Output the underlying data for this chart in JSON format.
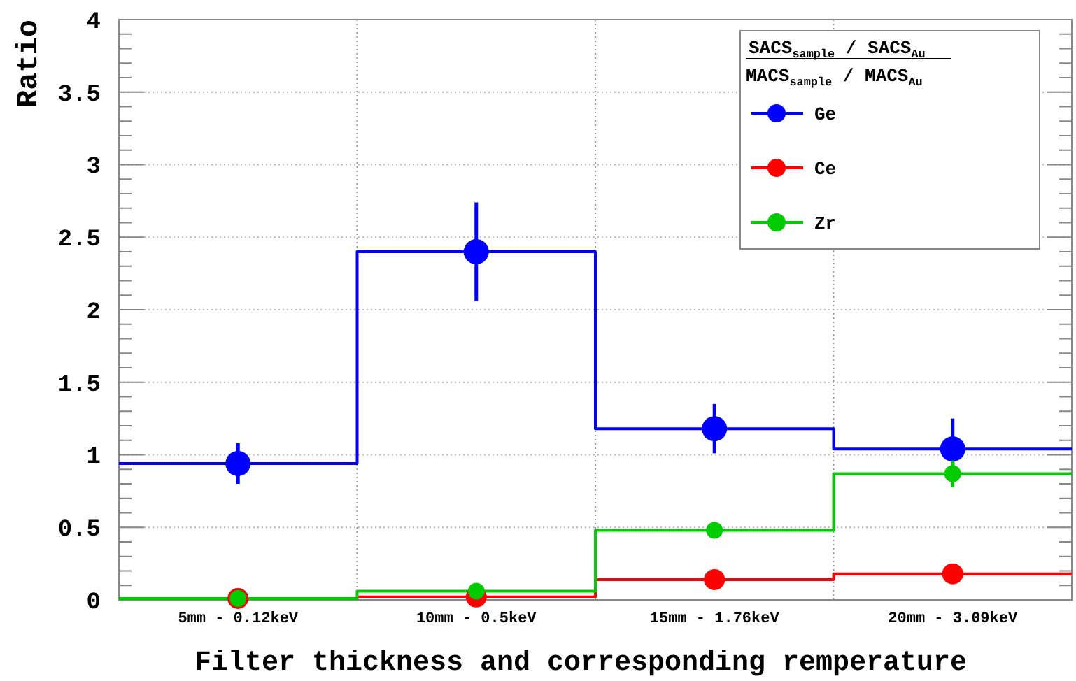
{
  "chart_data": {
    "type": "step",
    "xlabel": "Filter thickness and corresponding remperature",
    "ylabel": "Ratio",
    "legend_title": "SACS$_{sample}$ / SACS$_{Au}$\nMACS$_{sample}$ / MACS$_{Au}$",
    "categories": [
      "5mm - 0.12keV",
      "10mm - 0.5keV",
      "15mm - 1.76keV",
      "20mm - 3.09keV"
    ],
    "series": [
      {
        "name": "Ge",
        "color": "#0000ff",
        "values": [
          0.94,
          2.4,
          1.18,
          1.04
        ],
        "errors": [
          0.14,
          0.34,
          0.17,
          0.21
        ]
      },
      {
        "name": "Ce",
        "color": "#ff0000",
        "values": [
          0.01,
          0.02,
          0.14,
          0.18
        ],
        "errors": [
          null,
          null,
          null,
          null
        ]
      },
      {
        "name": "Zr",
        "color": "#00cc00",
        "values": [
          0.01,
          0.06,
          0.48,
          0.87
        ],
        "errors": [
          null,
          null,
          null,
          0.09
        ]
      }
    ],
    "ylim": [
      0,
      4
    ],
    "yticks": [
      0,
      {
        "value": 0.1,
        "label": null
      },
      {
        "value": 0.2,
        "label": null
      },
      {
        "value": 0.3,
        "label": null
      },
      {
        "value": 0.4,
        "label": null
      },
      0.5,
      {
        "value": 0.6,
        "label": null
      },
      {
        "value": 0.7,
        "label": null
      },
      {
        "value": 0.8,
        "label": null
      },
      {
        "value": 0.9,
        "label": null
      },
      1,
      {
        "value": 1.1,
        "label": null
      },
      {
        "value": 1.2,
        "label": null
      },
      {
        "value": 1.3,
        "label": null
      },
      {
        "value": 1.4,
        "label": null
      },
      1.5,
      {
        "value": 1.6,
        "label": null
      },
      {
        "value": 1.7,
        "label": null
      },
      {
        "value": 1.8,
        "label": null
      },
      {
        "value": 1.9,
        "label": null
      },
      2,
      {
        "value": 2.1,
        "label": null
      },
      {
        "value": 2.2,
        "label": null
      },
      {
        "value": 2.3,
        "label": null
      },
      {
        "value": 2.4,
        "label": null
      },
      2.5,
      {
        "value": 2.6,
        "label": null
      },
      {
        "value": 2.7,
        "label": null
      },
      {
        "value": 2.8,
        "label": null
      },
      {
        "value": 2.9,
        "label": null
      },
      3,
      {
        "value": 3.1,
        "label": null
      },
      {
        "value": 3.2,
        "label": null
      },
      {
        "value": 3.3,
        "label": null
      },
      {
        "value": 3.4,
        "label": null
      },
      3.5,
      {
        "value": 3.6,
        "label": null
      },
      {
        "value": 3.7,
        "label": null
      },
      {
        "value": 3.8,
        "label": null
      },
      {
        "value": 3.9,
        "label": null
      },
      4
    ],
    "grid": true,
    "legend": "top right",
    "marker": "circle",
    "line_style": "solid"
  }
}
